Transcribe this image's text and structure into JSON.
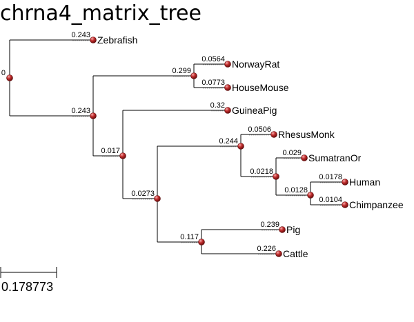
{
  "title": "chrna4_matrix_tree",
  "root_label": "0",
  "scale_label": "0.178773",
  "colors": {
    "node_dark": "#7a1010",
    "node_light": "#e86a6a"
  },
  "tree": {
    "id": "root",
    "length": "0",
    "children": [
      {
        "id": "zebrafish",
        "length": "0.243",
        "name": "Zebrafish"
      },
      {
        "id": "n1",
        "length": "0.243",
        "children": [
          {
            "id": "n2",
            "length": "0.299",
            "children": [
              {
                "id": "norwayrat",
                "length": "0.0564",
                "name": "NorwayRat"
              },
              {
                "id": "housemouse",
                "length": "0.0773",
                "name": "HouseMouse"
              }
            ]
          },
          {
            "id": "n3",
            "length": "0.017",
            "children": [
              {
                "id": "guineapig",
                "length": "0.32",
                "name": "GuineaPig"
              },
              {
                "id": "n4",
                "length": "0.0273",
                "children": [
                  {
                    "id": "n5",
                    "length": "0.244",
                    "children": [
                      {
                        "id": "rhesusmonk",
                        "length": "0.0506",
                        "name": "RhesusMonk"
                      },
                      {
                        "id": "n6",
                        "length": "0.0218",
                        "children": [
                          {
                            "id": "sumatranor",
                            "length": "0.029",
                            "name": "SumatranOr"
                          },
                          {
                            "id": "n7",
                            "length": "0.0128",
                            "children": [
                              {
                                "id": "human",
                                "length": "0.0178",
                                "name": "Human"
                              },
                              {
                                "id": "chimpanzee",
                                "length": "0.0104",
                                "name": "Chimpanzee"
                              }
                            ]
                          }
                        ]
                      }
                    ]
                  },
                  {
                    "id": "n8",
                    "length": "0.117",
                    "children": [
                      {
                        "id": "pig",
                        "length": "0.239",
                        "name": "Pig"
                      },
                      {
                        "id": "cattle",
                        "length": "0.226",
                        "name": "Cattle"
                      }
                    ]
                  }
                ]
              }
            ]
          }
        ]
      }
    ]
  }
}
